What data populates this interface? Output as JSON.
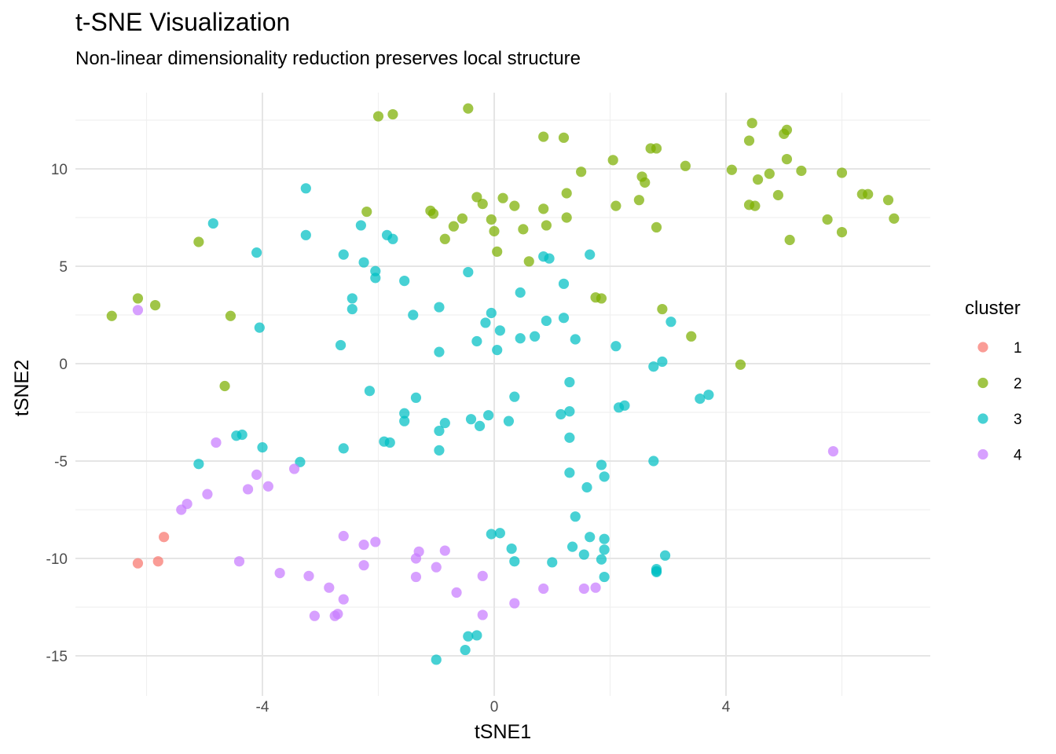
{
  "chart_data": {
    "type": "scatter",
    "title": "t-SNE Visualization",
    "subtitle": "Non-linear dimensionality reduction preserves local structure",
    "xlabel": "tSNE1",
    "ylabel": "tSNE2",
    "xlim": [
      -7.2,
      7.4
    ],
    "ylim": [
      -16.5,
      14.5
    ],
    "x_ticks": [
      -4,
      0,
      4
    ],
    "y_ticks": [
      -15,
      -10,
      -5,
      0,
      5,
      10
    ],
    "x_tick_labels": [
      "-4",
      "0",
      "4"
    ],
    "y_tick_labels": [
      "-15",
      "-10",
      "-5",
      "0",
      "5",
      "10"
    ],
    "grid": true,
    "legend": {
      "title": "cluster",
      "placement": "right"
    },
    "series": [
      {
        "name": "1",
        "color": "#F8766D",
        "points": [
          [
            -6.15,
            -10.25
          ],
          [
            -5.8,
            -10.15
          ],
          [
            -5.7,
            -8.9
          ]
        ]
      },
      {
        "name": "2",
        "color": "#7CAE00",
        "points": [
          [
            -6.6,
            2.45
          ],
          [
            -6.15,
            3.35
          ],
          [
            -5.85,
            3.0
          ],
          [
            -5.1,
            6.25
          ],
          [
            -4.55,
            2.45
          ],
          [
            -4.65,
            -1.15
          ],
          [
            -2.2,
            7.8
          ],
          [
            -2.0,
            12.7
          ],
          [
            -1.75,
            12.8
          ],
          [
            -1.1,
            7.85
          ],
          [
            -1.05,
            7.7
          ],
          [
            -0.7,
            7.05
          ],
          [
            -0.85,
            6.4
          ],
          [
            -0.55,
            7.45
          ],
          [
            -0.45,
            13.1
          ],
          [
            -0.3,
            8.55
          ],
          [
            -0.2,
            8.2
          ],
          [
            -0.05,
            7.4
          ],
          [
            0.0,
            6.8
          ],
          [
            0.05,
            5.75
          ],
          [
            0.15,
            8.5
          ],
          [
            0.35,
            8.1
          ],
          [
            0.5,
            6.9
          ],
          [
            0.6,
            5.25
          ],
          [
            0.85,
            7.95
          ],
          [
            0.85,
            11.65
          ],
          [
            0.9,
            7.1
          ],
          [
            1.2,
            11.6
          ],
          [
            1.25,
            7.5
          ],
          [
            1.25,
            8.75
          ],
          [
            1.5,
            9.85
          ],
          [
            1.75,
            3.4
          ],
          [
            1.85,
            3.35
          ],
          [
            2.05,
            10.45
          ],
          [
            2.1,
            8.1
          ],
          [
            2.5,
            8.4
          ],
          [
            2.55,
            9.6
          ],
          [
            2.6,
            9.3
          ],
          [
            2.7,
            11.05
          ],
          [
            2.8,
            11.05
          ],
          [
            2.8,
            7.0
          ],
          [
            2.9,
            2.8
          ],
          [
            3.3,
            10.15
          ],
          [
            3.4,
            1.4
          ],
          [
            4.1,
            9.95
          ],
          [
            4.25,
            -0.05
          ],
          [
            4.4,
            11.45
          ],
          [
            4.4,
            8.15
          ],
          [
            4.45,
            12.35
          ],
          [
            4.5,
            8.1
          ],
          [
            4.55,
            9.45
          ],
          [
            4.75,
            9.75
          ],
          [
            4.9,
            8.65
          ],
          [
            5.0,
            11.8
          ],
          [
            5.05,
            12.0
          ],
          [
            5.05,
            10.5
          ],
          [
            5.1,
            6.35
          ],
          [
            5.3,
            9.9
          ],
          [
            5.75,
            7.4
          ],
          [
            6.0,
            6.75
          ],
          [
            6.0,
            9.8
          ],
          [
            6.35,
            8.7
          ],
          [
            6.45,
            8.7
          ],
          [
            6.8,
            8.4
          ],
          [
            6.9,
            7.45
          ]
        ]
      },
      {
        "name": "3",
        "color": "#00BFC4",
        "points": [
          [
            -4.85,
            7.2
          ],
          [
            -3.25,
            9.0
          ],
          [
            -3.25,
            6.6
          ],
          [
            -4.1,
            5.7
          ],
          [
            -4.05,
            1.85
          ],
          [
            -2.6,
            5.6
          ],
          [
            -2.3,
            7.1
          ],
          [
            -1.85,
            6.6
          ],
          [
            -1.75,
            6.4
          ],
          [
            -2.25,
            5.2
          ],
          [
            -2.05,
            4.75
          ],
          [
            -2.05,
            4.4
          ],
          [
            -1.55,
            4.25
          ],
          [
            -2.45,
            3.35
          ],
          [
            -2.45,
            2.8
          ],
          [
            -2.65,
            0.95
          ],
          [
            -1.4,
            2.5
          ],
          [
            -0.95,
            2.9
          ],
          [
            -0.45,
            4.7
          ],
          [
            -0.05,
            2.6
          ],
          [
            -0.15,
            2.1
          ],
          [
            -0.3,
            1.15
          ],
          [
            -0.95,
            0.6
          ],
          [
            0.1,
            1.7
          ],
          [
            0.05,
            0.7
          ],
          [
            0.45,
            3.65
          ],
          [
            0.45,
            1.3
          ],
          [
            0.7,
            1.4
          ],
          [
            0.85,
            5.5
          ],
          [
            0.95,
            5.4
          ],
          [
            0.9,
            2.2
          ],
          [
            1.2,
            4.1
          ],
          [
            1.2,
            2.35
          ],
          [
            1.4,
            1.25
          ],
          [
            1.65,
            5.6
          ],
          [
            2.1,
            0.9
          ],
          [
            2.75,
            -0.15
          ],
          [
            2.9,
            0.1
          ],
          [
            3.05,
            2.15
          ],
          [
            3.55,
            -1.8
          ],
          [
            3.7,
            -1.6
          ],
          [
            -2.15,
            -1.4
          ],
          [
            -1.35,
            -1.75
          ],
          [
            -1.55,
            -2.55
          ],
          [
            -1.55,
            -2.95
          ],
          [
            -1.8,
            -4.05
          ],
          [
            -1.9,
            -4.0
          ],
          [
            -0.85,
            -3.05
          ],
          [
            -0.95,
            -3.45
          ],
          [
            -0.95,
            -4.45
          ],
          [
            -0.4,
            -2.85
          ],
          [
            -0.25,
            -3.2
          ],
          [
            -0.1,
            -2.65
          ],
          [
            0.25,
            -2.95
          ],
          [
            0.35,
            -1.7
          ],
          [
            1.15,
            -2.6
          ],
          [
            1.3,
            -2.45
          ],
          [
            1.3,
            -0.95
          ],
          [
            1.3,
            -3.8
          ],
          [
            2.15,
            -2.25
          ],
          [
            2.25,
            -2.15
          ],
          [
            -4.45,
            -3.7
          ],
          [
            -4.35,
            -3.65
          ],
          [
            -4.0,
            -4.3
          ],
          [
            -3.35,
            -5.05
          ],
          [
            -5.1,
            -5.15
          ],
          [
            -2.6,
            -4.35
          ],
          [
            1.3,
            -5.6
          ],
          [
            1.6,
            -6.35
          ],
          [
            1.85,
            -5.2
          ],
          [
            1.9,
            -5.8
          ],
          [
            2.75,
            -5.0
          ],
          [
            1.4,
            -7.85
          ],
          [
            -0.05,
            -8.75
          ],
          [
            0.1,
            -8.7
          ],
          [
            0.3,
            -9.5
          ],
          [
            0.35,
            -10.15
          ],
          [
            1.0,
            -10.2
          ],
          [
            1.35,
            -9.4
          ],
          [
            1.55,
            -9.8
          ],
          [
            1.65,
            -8.9
          ],
          [
            1.9,
            -9.0
          ],
          [
            1.9,
            -9.55
          ],
          [
            1.85,
            -10.05
          ],
          [
            1.9,
            -10.95
          ],
          [
            2.8,
            -10.55
          ],
          [
            2.8,
            -10.65
          ],
          [
            2.8,
            -10.7
          ],
          [
            2.95,
            -9.85
          ],
          [
            -0.45,
            -14.0
          ],
          [
            -0.5,
            -14.7
          ],
          [
            -0.3,
            -13.95
          ],
          [
            -1.0,
            -15.2
          ]
        ]
      },
      {
        "name": "4",
        "color": "#C77CFF",
        "points": [
          [
            -6.15,
            2.75
          ],
          [
            -4.8,
            -4.05
          ],
          [
            -5.4,
            -7.5
          ],
          [
            -5.3,
            -7.2
          ],
          [
            -4.95,
            -6.7
          ],
          [
            -4.4,
            -10.15
          ],
          [
            -4.25,
            -6.45
          ],
          [
            -4.1,
            -5.7
          ],
          [
            -3.9,
            -6.3
          ],
          [
            -3.45,
            -5.4
          ],
          [
            -3.7,
            -10.75
          ],
          [
            -3.2,
            -10.9
          ],
          [
            -2.85,
            -11.5
          ],
          [
            -2.75,
            -12.95
          ],
          [
            -2.7,
            -12.85
          ],
          [
            -3.1,
            -12.95
          ],
          [
            -2.6,
            -12.1
          ],
          [
            -2.6,
            -8.85
          ],
          [
            -2.25,
            -9.3
          ],
          [
            -2.05,
            -9.15
          ],
          [
            -2.25,
            -10.35
          ],
          [
            -1.35,
            -10.0
          ],
          [
            -1.3,
            -9.65
          ],
          [
            -1.35,
            -10.95
          ],
          [
            -1.0,
            -10.45
          ],
          [
            -0.85,
            -9.6
          ],
          [
            -0.65,
            -11.75
          ],
          [
            -0.2,
            -10.9
          ],
          [
            -0.2,
            -12.9
          ],
          [
            0.35,
            -12.3
          ],
          [
            0.85,
            -11.55
          ],
          [
            1.55,
            -11.55
          ],
          [
            1.75,
            -11.5
          ],
          [
            5.85,
            -4.5
          ]
        ]
      }
    ]
  }
}
